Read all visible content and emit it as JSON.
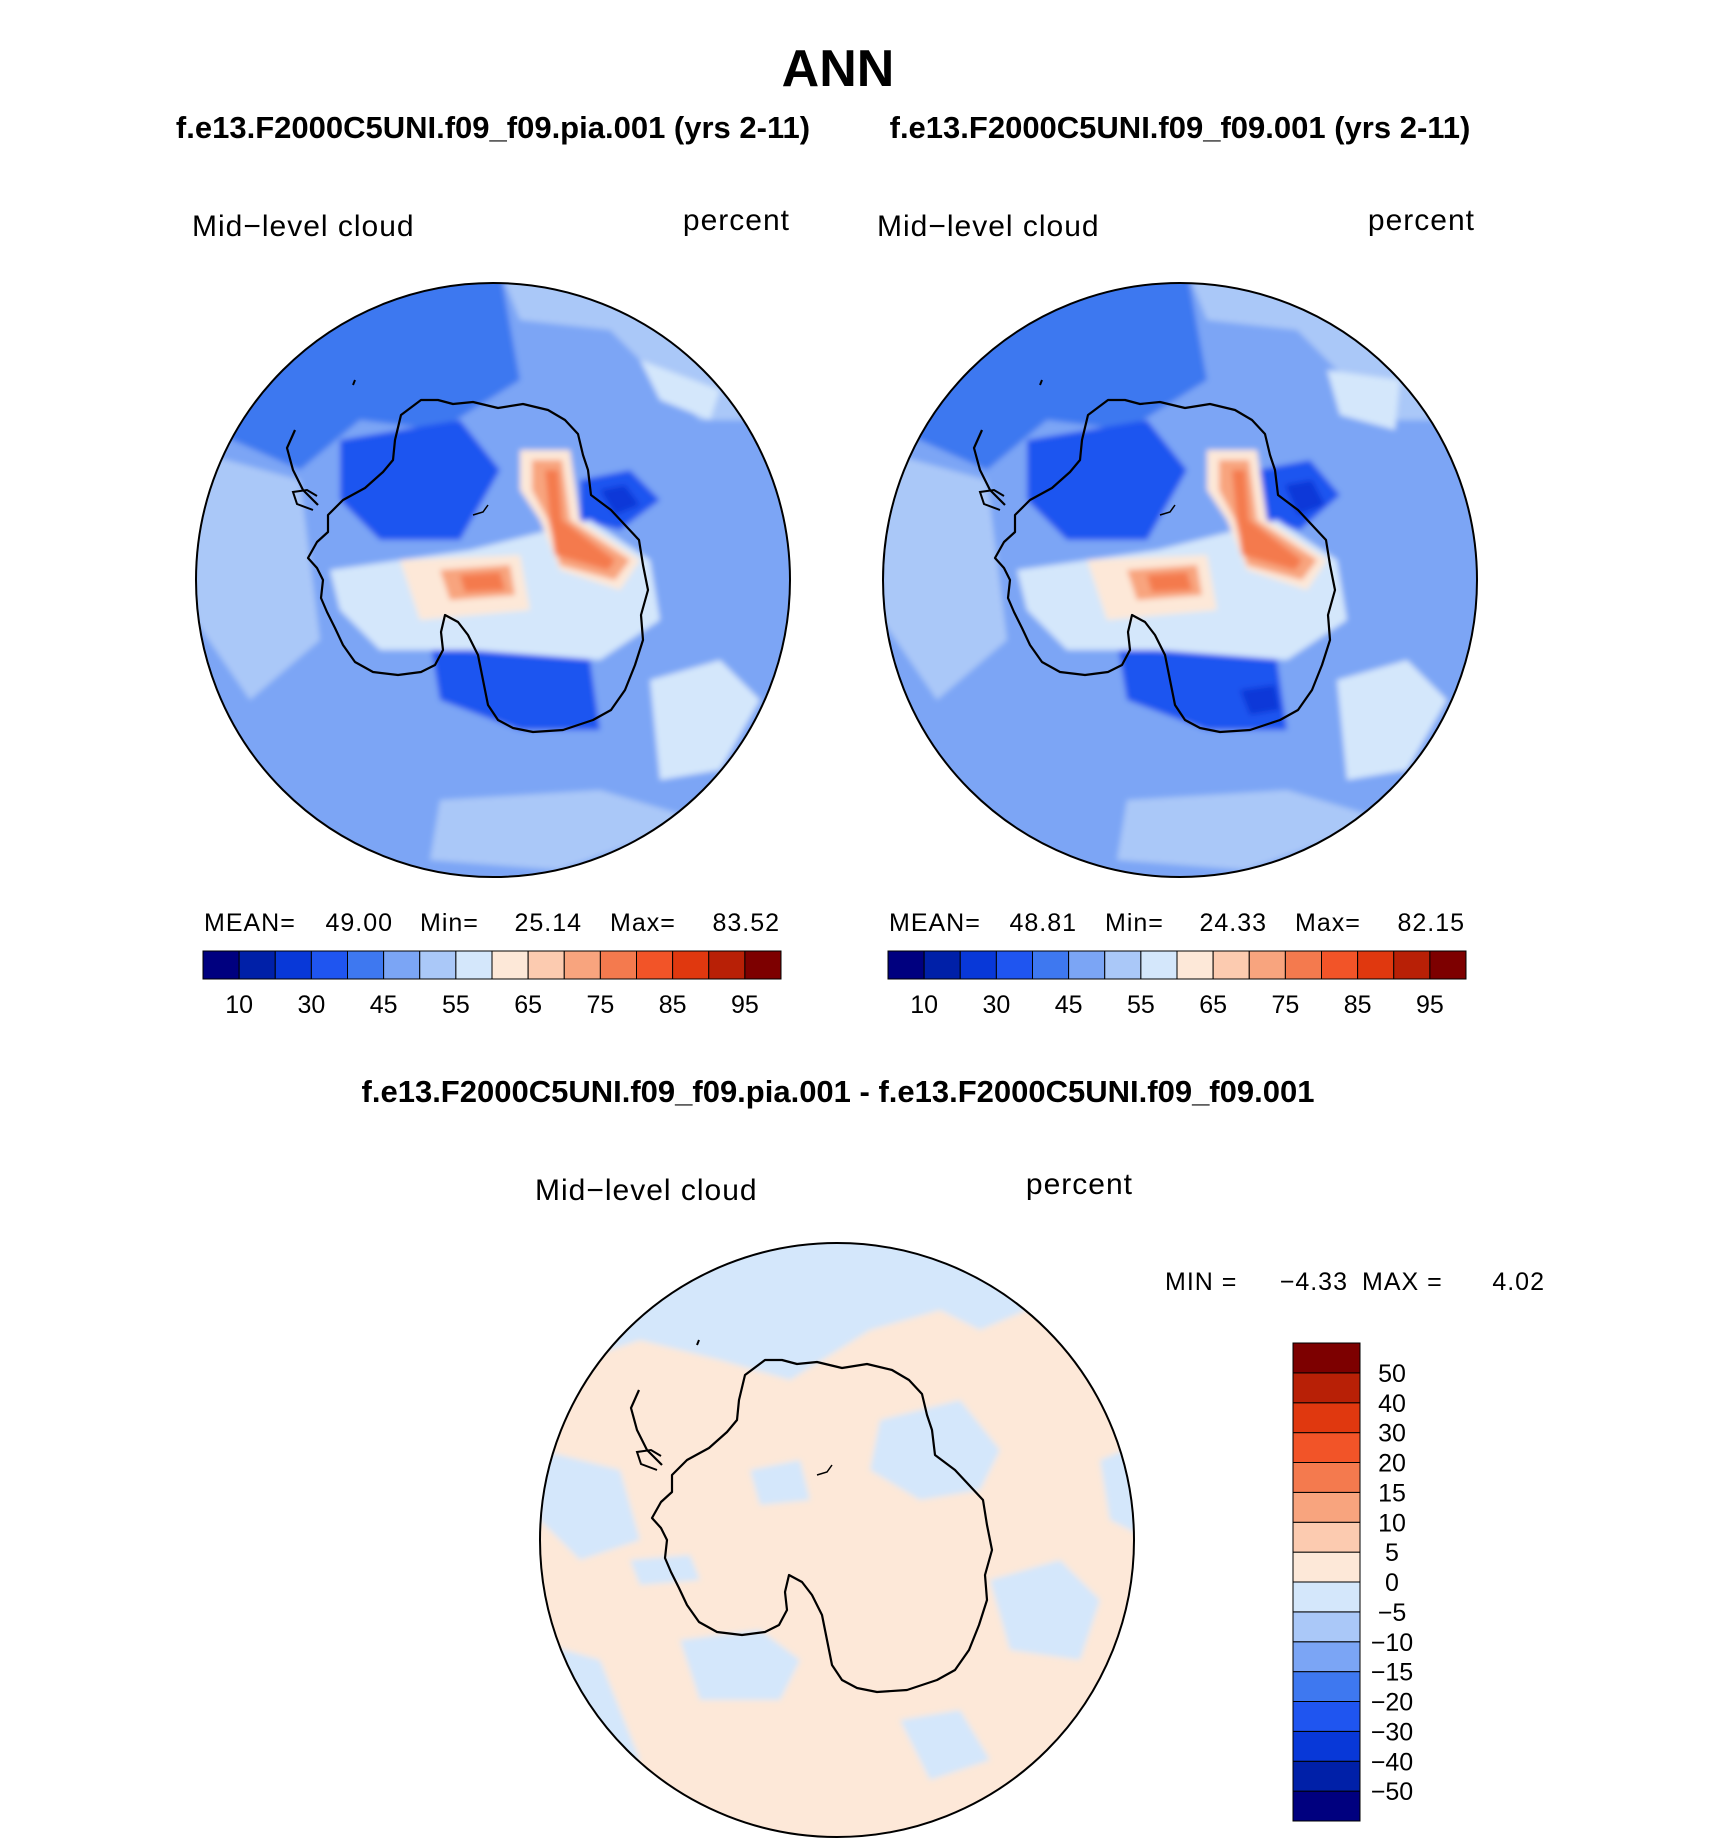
{
  "page_title": "ANN",
  "panels": [
    {
      "id": "panel-test",
      "case_title": "f.e13.F2000C5UNI.f09_f09.pia.001 (yrs 2-11)",
      "variable_label": "Mid−level cloud",
      "units_label": "percent",
      "stats": {
        "mean_label": "MEAN=",
        "mean": "49.00",
        "min_label": "Min=",
        "min": "25.14",
        "max_label": "Max=",
        "max": "83.52"
      }
    },
    {
      "id": "panel-control",
      "case_title": "f.e13.F2000C5UNI.f09_f09.001 (yrs 2-11)",
      "variable_label": "Mid−level cloud",
      "units_label": "percent",
      "stats": {
        "mean_label": "MEAN=",
        "mean": "48.81",
        "min_label": "Min=",
        "min": "24.33",
        "max_label": "Max=",
        "max": "82.15"
      }
    }
  ],
  "diff_panel": {
    "title": "f.e13.F2000C5UNI.f09_f09.pia.001 - f.e13.F2000C5UNI.f09_f09.001",
    "variable_label": "Mid−level cloud",
    "units_label": "percent",
    "stats": {
      "min_label": "MIN =",
      "min": "−4.33",
      "max_label": "MAX =",
      "max": "4.02"
    }
  },
  "colors": {
    "abs_scale": [
      "#00007f",
      "#0020a8",
      "#0838d8",
      "#1f55f0",
      "#3e78f0",
      "#7ba5f5",
      "#aac8f8",
      "#d4e7fb",
      "#fde8d8",
      "#fccbb0",
      "#f8a47e",
      "#f47a4e",
      "#f25428",
      "#e0380f",
      "#b82006",
      "#7d0000"
    ],
    "diff_scale": [
      "#00007f",
      "#0020a8",
      "#0838d8",
      "#1f55f0",
      "#3e78f0",
      "#7ba5f5",
      "#aac8f8",
      "#d4e7fb",
      "#fde8d8",
      "#fccbb0",
      "#f8a47e",
      "#f47a4e",
      "#f25428",
      "#e0380f",
      "#b82006",
      "#7d0000"
    ]
  },
  "chart_data": [
    {
      "type": "heatmap",
      "projection": "south-polar-stereographic",
      "title": "f.e13.F2000C5UNI.f09_f09.pia.001 (yrs 2-11)",
      "variable": "Mid−level cloud",
      "units": "percent",
      "mean": 49.0,
      "min": 25.14,
      "max": 83.52,
      "colorbar": {
        "orientation": "horizontal",
        "tick_labels": [
          "10",
          "30",
          "45",
          "55",
          "65",
          "75",
          "85",
          "95"
        ]
      }
    },
    {
      "type": "heatmap",
      "projection": "south-polar-stereographic",
      "title": "f.e13.F2000C5UNI.f09_f09.001 (yrs 2-11)",
      "variable": "Mid−level cloud",
      "units": "percent",
      "mean": 48.81,
      "min": 24.33,
      "max": 82.15,
      "colorbar": {
        "orientation": "horizontal",
        "tick_labels": [
          "10",
          "30",
          "45",
          "55",
          "65",
          "75",
          "85",
          "95"
        ]
      }
    },
    {
      "type": "heatmap",
      "projection": "south-polar-stereographic",
      "title": "f.e13.F2000C5UNI.f09_f09.pia.001 - f.e13.F2000C5UNI.f09_f09.001",
      "variable": "Mid−level cloud",
      "units": "percent",
      "min": -4.33,
      "max": 4.02,
      "colorbar": {
        "orientation": "vertical",
        "tick_labels": [
          "50",
          "40",
          "30",
          "20",
          "15",
          "10",
          "5",
          "0",
          "−5",
          "−10",
          "−15",
          "−20",
          "−30",
          "−40",
          "−50"
        ]
      }
    }
  ]
}
